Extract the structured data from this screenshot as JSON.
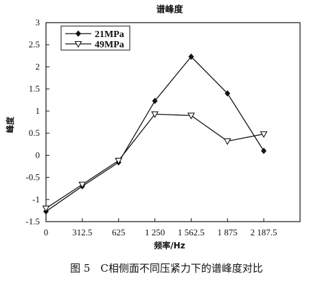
{
  "chart_data": {
    "type": "line",
    "title": "谱峰度",
    "xlabel": "频率/Hz",
    "ylabel": "峰度",
    "categories": [
      "0",
      "312.5",
      "625",
      "1 250",
      "1 562.5",
      "1 875",
      "2 187.5"
    ],
    "ylim": [
      -1.5,
      3
    ],
    "yticks": [
      "3",
      "2.5",
      "2",
      "1.5",
      "1",
      "0.5",
      "0",
      "-0.5",
      "-1",
      "-1.5"
    ],
    "ytick_values": [
      3,
      2.5,
      2,
      1.5,
      1,
      0.5,
      0,
      -0.5,
      -1,
      -1.5
    ],
    "legend_position": "top-left",
    "series": [
      {
        "name": "21MPa",
        "marker": "diamond",
        "values": [
          -1.27,
          -0.7,
          -0.16,
          1.23,
          2.23,
          1.4,
          0.1
        ]
      },
      {
        "name": "49MPa",
        "marker": "triangle-down",
        "values": [
          -1.2,
          -0.66,
          -0.12,
          0.93,
          0.9,
          0.32,
          0.48
        ]
      }
    ]
  },
  "caption": "图 5　C相侧面不同压紧力下的谱峰度对比"
}
